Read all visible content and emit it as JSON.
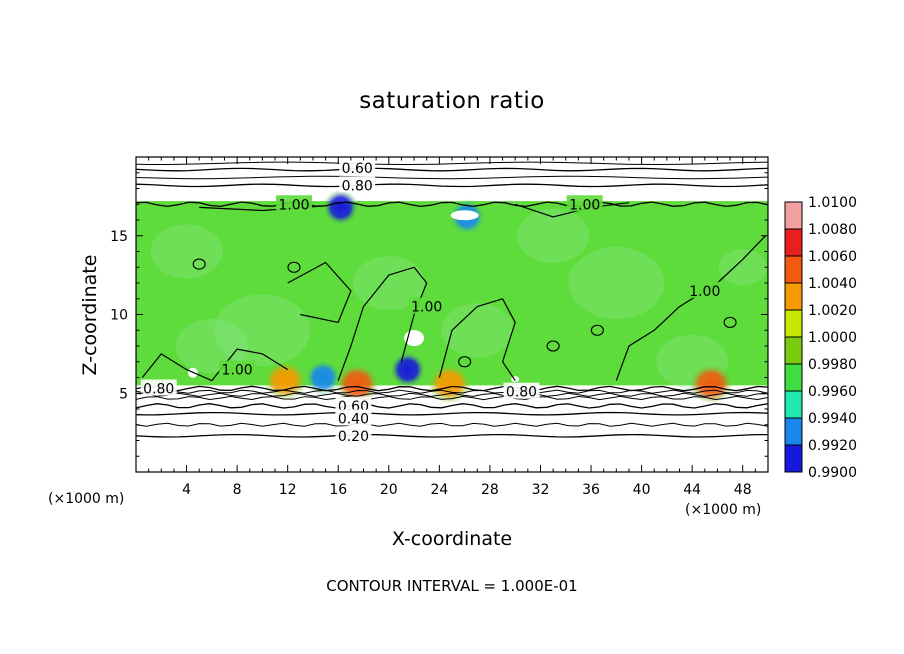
{
  "chart_data": {
    "type": "heatmap",
    "title": "saturation ratio",
    "xlabel": "X-coordinate",
    "ylabel": "Z-coordinate",
    "x_unit": "(×1000 m)",
    "xlim": [
      0,
      50
    ],
    "ylim": [
      0,
      20
    ],
    "xticks": [
      4,
      8,
      12,
      16,
      20,
      24,
      28,
      32,
      36,
      40,
      44,
      48
    ],
    "yticks": [
      5,
      10,
      15
    ],
    "footer": "CONTOUR INTERVAL = 1.000E-01",
    "colorbar": {
      "levels": [
        "1.0100",
        "1.0080",
        "1.0060",
        "1.0040",
        "1.0020",
        "1.0000",
        "0.9980",
        "0.9960",
        "0.9940",
        "0.9920",
        "0.9900"
      ],
      "colors": [
        "#f4a0a0",
        "#e82020",
        "#f25a10",
        "#f59a00",
        "#c8e600",
        "#78cc10",
        "#40dd40",
        "#20e8b0",
        "#1888ee",
        "#1818dd",
        "#5a20a0"
      ]
    },
    "field_zlim": [
      5.5,
      17.2
    ],
    "field_base_color": "#5ddc3c",
    "contour_lines": [
      {
        "label": "0.20",
        "z": 2.3
      },
      {
        "label": "0.40",
        "z": 3.7
      },
      {
        "label": "0.60",
        "z": 4.2
      },
      {
        "label": "0.80",
        "z": 5.3
      },
      {
        "label": "1.00",
        "z": 17.0
      },
      {
        "label": "0.80",
        "z": 18.2
      },
      {
        "label": "0.60",
        "z": 19.2
      }
    ],
    "contour_label_positions": [
      {
        "label": "0.60",
        "x": 17.5,
        "z": 19.3
      },
      {
        "label": "0.80",
        "x": 17.5,
        "z": 18.2
      },
      {
        "label": "1.00",
        "x": 12.5,
        "z": 17.0
      },
      {
        "label": "1.00",
        "x": 35.5,
        "z": 17.0
      },
      {
        "label": "1.00",
        "x": 23.0,
        "z": 10.5
      },
      {
        "label": "1.00",
        "x": 45.0,
        "z": 11.5
      },
      {
        "label": "1.00",
        "x": 8.0,
        "z": 6.5
      },
      {
        "label": "0.80",
        "x": 1.8,
        "z": 5.3
      },
      {
        "label": "0.80",
        "x": 30.5,
        "z": 5.1
      },
      {
        "label": "0.60",
        "x": 17.2,
        "z": 4.2
      },
      {
        "label": "0.40",
        "x": 17.2,
        "z": 3.4
      },
      {
        "label": "0.20",
        "x": 17.2,
        "z": 2.3
      }
    ],
    "hotspots": [
      {
        "x": 17.5,
        "z": 5.6,
        "value": 1.006
      },
      {
        "x": 45.5,
        "z": 5.6,
        "value": 1.006
      },
      {
        "x": 24.8,
        "z": 5.6,
        "value": 1.004
      },
      {
        "x": 11.8,
        "z": 5.8,
        "value": 1.004
      }
    ],
    "coldspots": [
      {
        "x": 21.5,
        "z": 6.5,
        "value": 0.992
      },
      {
        "x": 16.2,
        "z": 16.8,
        "value": 0.992
      },
      {
        "x": 26.2,
        "z": 16.2,
        "value": 0.994
      },
      {
        "x": 14.8,
        "z": 6.0,
        "value": 0.994
      }
    ]
  }
}
